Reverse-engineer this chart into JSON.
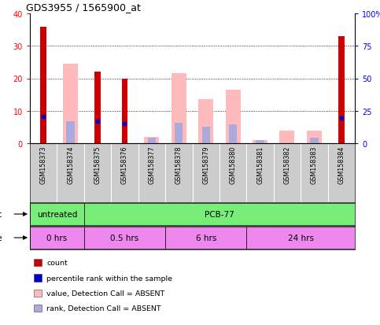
{
  "title": "GDS3955 / 1565900_at",
  "samples": [
    "GSM158373",
    "GSM158374",
    "GSM158375",
    "GSM158376",
    "GSM158377",
    "GSM158378",
    "GSM158379",
    "GSM158380",
    "GSM158381",
    "GSM158382",
    "GSM158383",
    "GSM158384"
  ],
  "count_values": [
    36,
    0,
    22,
    20,
    0,
    0,
    0,
    0,
    0,
    0,
    0,
    33
  ],
  "percentile_values": [
    20.5,
    0,
    17,
    15,
    0,
    0,
    0,
    0,
    0,
    0,
    0,
    19.5
  ],
  "pink_bar_values": [
    0,
    24.5,
    0,
    0,
    2,
    21.5,
    13.5,
    16.5,
    1,
    4,
    4,
    0
  ],
  "blue_rank_values": [
    0,
    17,
    0,
    0,
    4.5,
    16,
    12.5,
    14.5,
    2.5,
    0,
    4,
    0
  ],
  "ylim_left": [
    0,
    40
  ],
  "ylim_right": [
    0,
    100
  ],
  "yticks_left": [
    0,
    10,
    20,
    30,
    40
  ],
  "yticks_right": [
    0,
    25,
    50,
    75,
    100
  ],
  "agent_groups": [
    {
      "label": "untreated",
      "start": 0,
      "end": 2,
      "color": "#77ee77"
    },
    {
      "label": "PCB-77",
      "start": 2,
      "end": 12,
      "color": "#77ee77"
    }
  ],
  "time_groups": [
    {
      "label": "0 hrs",
      "start": 0,
      "end": 2,
      "color": "#ee88ee"
    },
    {
      "label": "0.5 hrs",
      "start": 2,
      "end": 5,
      "color": "#ee88ee"
    },
    {
      "label": "6 hrs",
      "start": 5,
      "end": 8,
      "color": "#ee88ee"
    },
    {
      "label": "24 hrs",
      "start": 8,
      "end": 12,
      "color": "#ee88ee"
    }
  ],
  "colors": {
    "count": "#cc0000",
    "percentile": "#0000cc",
    "pink_bar": "#ffbbbb",
    "blue_rank": "#aaaadd",
    "sample_bg": "#cccccc",
    "grid": "#000000"
  },
  "legend": [
    {
      "label": "count",
      "color": "#cc0000"
    },
    {
      "label": "percentile rank within the sample",
      "color": "#0000cc"
    },
    {
      "label": "value, Detection Call = ABSENT",
      "color": "#ffbbbb"
    },
    {
      "label": "rank, Detection Call = ABSENT",
      "color": "#aaaadd"
    }
  ]
}
